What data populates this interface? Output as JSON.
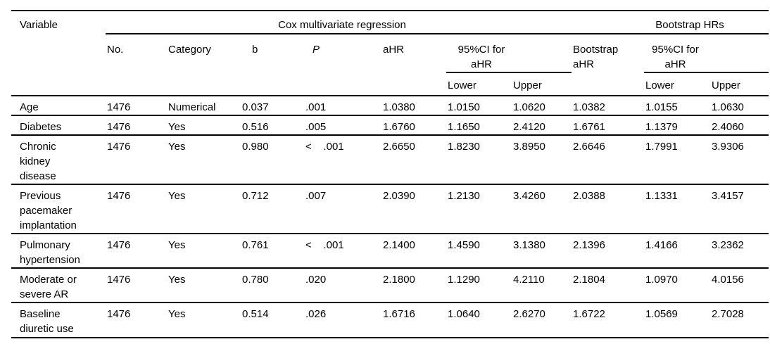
{
  "table": {
    "headers": {
      "variable": "Variable",
      "groups": {
        "cox": "Cox multivariate regression",
        "bootstrap": "Bootstrap HRs"
      },
      "columns": {
        "no": "No.",
        "category": "Category",
        "b": "b",
        "p": "P",
        "ahr": "aHR",
        "ci_cox": "95%CI for aHR",
        "bootstrap_ahr": "Bootstrap\naHR",
        "ci_bootstrap": "95%CI for aHR",
        "lower": "Lower",
        "upper": "Upper"
      }
    },
    "rows": [
      {
        "variable": "Age",
        "no": "1476",
        "category": "Numerical",
        "b": "0.037",
        "p": ".001",
        "ahr": "1.0380",
        "ci_lower": "1.0150",
        "ci_upper": "1.0620",
        "bootstrap_ahr": "1.0382",
        "boot_lower": "1.0155",
        "boot_upper": "1.0630"
      },
      {
        "variable": "Diabetes",
        "no": "1476",
        "category": "Yes",
        "b": "0.516",
        "p": ".005",
        "ahr": "1.6760",
        "ci_lower": "1.1650",
        "ci_upper": "2.4120",
        "bootstrap_ahr": "1.6761",
        "boot_lower": "1.1379",
        "boot_upper": "2.4060"
      },
      {
        "variable": "Chronic\nkidney\ndisease",
        "no": "1476",
        "category": "Yes",
        "b": "0.980",
        "p": "<    .001",
        "ahr": "2.6650",
        "ci_lower": "1.8230",
        "ci_upper": "3.8950",
        "bootstrap_ahr": "2.6646",
        "boot_lower": "1.7991",
        "boot_upper": "3.9306"
      },
      {
        "variable": "Previous\npacemaker\nimplantation",
        "no": "1476",
        "category": "Yes",
        "b": "0.712",
        "p": ".007",
        "ahr": "2.0390",
        "ci_lower": "1.2130",
        "ci_upper": "3.4260",
        "bootstrap_ahr": "2.0388",
        "boot_lower": "1.1331",
        "boot_upper": "3.4157"
      },
      {
        "variable": "Pulmonary\nhypertension",
        "no": "1476",
        "category": "Yes",
        "b": "0.761",
        "p": "<    .001",
        "ahr": "2.1400",
        "ci_lower": "1.4590",
        "ci_upper": "3.1380",
        "bootstrap_ahr": "2.1396",
        "boot_lower": "1.4166",
        "boot_upper": "3.2362"
      },
      {
        "variable": "Moderate or\nsevere AR",
        "no": "1476",
        "category": "Yes",
        "b": "0.780",
        "p": ".020",
        "ahr": "2.1800",
        "ci_lower": "1.1290",
        "ci_upper": "4.2110",
        "bootstrap_ahr": "2.1804",
        "boot_lower": "1.0970",
        "boot_upper": "4.0156"
      },
      {
        "variable": "Baseline\ndiuretic use",
        "no": "1476",
        "category": "Yes",
        "b": "0.514",
        "p": ".026",
        "ahr": "1.6716",
        "ci_lower": "1.0640",
        "ci_upper": "2.6270",
        "bootstrap_ahr": "1.6722",
        "boot_lower": "1.0569",
        "boot_upper": "2.7028"
      }
    ]
  }
}
